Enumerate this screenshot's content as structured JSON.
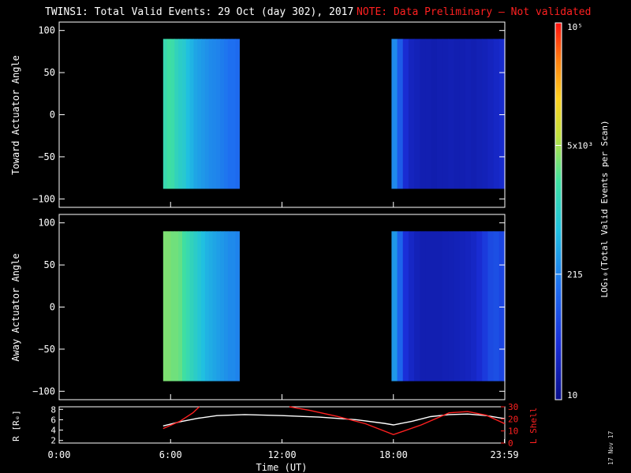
{
  "header": {
    "title": "TWINS1: Total Valid Events: 29 Oct (day 302), 2017",
    "note": "NOTE: Data Preliminary — Not validated",
    "date_stamp": "17 Nov 17"
  },
  "colors": {
    "background": "#000000",
    "axes": "#ffffff",
    "note": "#ff2020",
    "l_shell": "#ff2020",
    "radius": "#ffffff"
  },
  "chart_data": [
    {
      "type": "heatmap",
      "panel": "toward",
      "ylabel": "Toward Actuator Angle",
      "ylim": [
        -110,
        110
      ],
      "yticks": [
        "100",
        "50",
        "0",
        "−50",
        "−100"
      ],
      "ytick_values": [
        100,
        50,
        0,
        -50,
        -100
      ],
      "xlim": [
        0,
        24
      ],
      "data_blocks": [
        {
          "start_h": 5.6,
          "end_h": 9.7,
          "angle_range": [
            -88,
            90
          ],
          "log_counts_by_time": [
            3.2,
            3.3,
            3.25,
            3.1,
            3.0,
            2.95,
            2.8,
            2.7,
            2.6,
            2.55,
            2.5,
            2.45,
            2.4,
            2.38,
            2.35,
            2.3,
            2.25,
            2.2,
            2.2,
            2.15
          ]
        },
        {
          "start_h": 17.9,
          "end_h": 24.0,
          "angle_range": [
            -88,
            90
          ],
          "log_counts_by_time": [
            2.4,
            2.0,
            1.55,
            1.4,
            1.35,
            1.3,
            1.3,
            1.28,
            1.3,
            1.3,
            1.32,
            1.3,
            1.3,
            1.32,
            1.3,
            1.33,
            1.35,
            1.4,
            1.45,
            1.5
          ]
        }
      ]
    },
    {
      "type": "heatmap",
      "panel": "away",
      "ylabel": "Away Actuator Angle",
      "ylim": [
        -110,
        110
      ],
      "yticks": [
        "100",
        "50",
        "0",
        "−50",
        "−100"
      ],
      "ytick_values": [
        100,
        50,
        0,
        -50,
        -100
      ],
      "xlim": [
        0,
        24
      ],
      "data_blocks": [
        {
          "start_h": 5.6,
          "end_h": 9.7,
          "angle_range": [
            -88,
            90
          ],
          "log_counts_by_time": [
            3.55,
            3.55,
            3.5,
            3.5,
            3.45,
            3.3,
            3.2,
            3.1,
            3.0,
            2.9,
            2.8,
            2.7,
            2.65,
            2.6,
            2.55,
            2.5,
            2.45,
            2.4,
            2.4,
            2.35
          ]
        },
        {
          "start_h": 17.9,
          "end_h": 24.0,
          "angle_range": [
            -88,
            90
          ],
          "log_counts_by_time": [
            2.5,
            2.1,
            1.6,
            1.45,
            1.35,
            1.3,
            1.3,
            1.3,
            1.3,
            1.32,
            1.33,
            1.35,
            1.37,
            1.4,
            1.45,
            1.55,
            1.7,
            1.85,
            1.9,
            1.8
          ]
        }
      ]
    },
    {
      "type": "line",
      "panel": "orbit",
      "ylabel": "R [Rₑ]",
      "y2label": "L Shell",
      "xlabel": "Time (UT)",
      "xticks": [
        "0:00",
        "6:00",
        "12:00",
        "18:00",
        "23:59"
      ],
      "xtick_values": [
        0,
        6,
        12,
        18,
        23.98
      ],
      "ylim": [
        1.5,
        8.5
      ],
      "yticks": [
        "2",
        "4",
        "6",
        "8"
      ],
      "ytick_values": [
        2,
        4,
        6,
        8
      ],
      "y2lim": [
        0,
        30
      ],
      "y2ticks": [
        "0",
        "10",
        "20",
        "30"
      ],
      "y2tick_values": [
        0,
        10,
        20,
        30
      ],
      "series": [
        {
          "axis": "left",
          "color": "#ffffff",
          "x": [
            5.6,
            6.5,
            7.5,
            8.5,
            10,
            12,
            14,
            16,
            17.5,
            18,
            19,
            20,
            21,
            22,
            23,
            24
          ],
          "y": [
            4.8,
            5.6,
            6.3,
            6.8,
            7.0,
            6.8,
            6.5,
            6.0,
            5.3,
            5.0,
            5.7,
            6.6,
            7.0,
            7.1,
            6.8,
            6.2
          ]
        },
        {
          "axis": "right",
          "color": "#ff2020",
          "x": [
            5.6,
            6.5,
            7.2,
            7.55
          ],
          "y": [
            12,
            18,
            25,
            30
          ]
        },
        {
          "axis": "right",
          "color": "#ff2020",
          "x": [
            12.4,
            13.5,
            15,
            16.5,
            18.0,
            19.5,
            21,
            22,
            23,
            24
          ],
          "y": [
            30,
            27,
            22,
            16,
            7,
            15,
            25,
            26,
            23,
            16
          ]
        }
      ]
    }
  ],
  "colorbar": {
    "label": "LOG₁₀(Total Valid Events per Scan)",
    "tick_labels": [
      "10⁵",
      "5x10³",
      "215",
      "10"
    ],
    "tick_log_values": [
      5,
      3.699,
      2.332,
      1
    ],
    "range_log": [
      1,
      5
    ]
  }
}
